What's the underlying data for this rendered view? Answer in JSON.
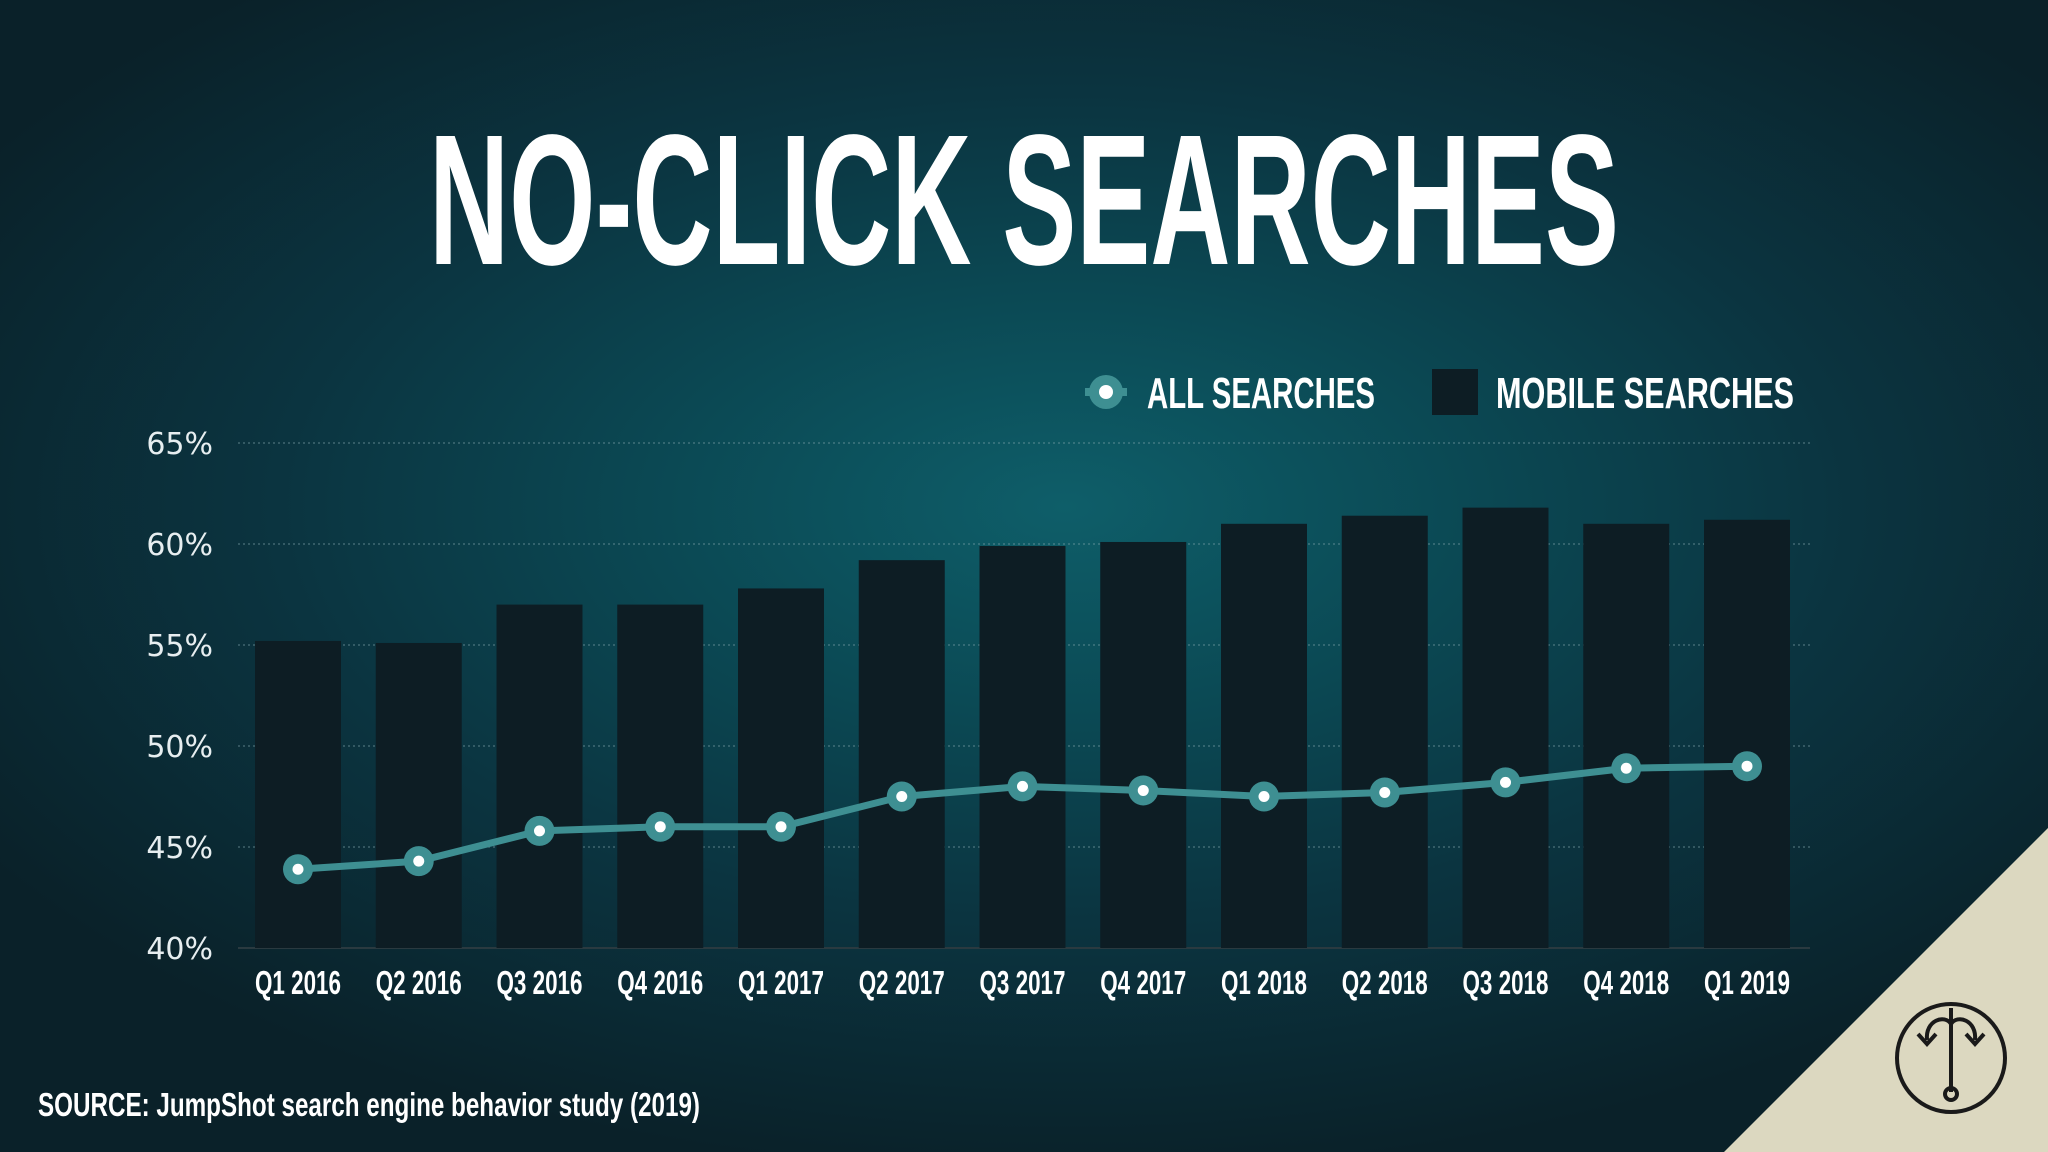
{
  "page": {
    "title": "NO-CLICK SEARCHES",
    "source": "SOURCE: JumpShot search engine behavior study (2019)",
    "logo_icon": "anchor-f-logo-icon"
  },
  "colors": {
    "background": "#0b3440",
    "bar": "#0d1d24",
    "line": "#3e8f92",
    "marker_center": "#ffffff",
    "grid": "#7fa3aa",
    "corner": "#dcd8c0",
    "logo": "#1a1a1a"
  },
  "chart_data": {
    "type": "bar",
    "title": "NO-CLICK SEARCHES",
    "categories": [
      "Q1 2016",
      "Q2 2016",
      "Q3 2016",
      "Q4 2016",
      "Q1 2017",
      "Q2 2017",
      "Q3 2017",
      "Q4 2017",
      "Q1 2018",
      "Q2 2018",
      "Q3 2018",
      "Q4 2018",
      "Q1 2019"
    ],
    "series": [
      {
        "name": "MOBILE SEARCHES",
        "type": "bar",
        "values": [
          55.2,
          55.1,
          57.0,
          57.0,
          57.8,
          59.2,
          59.9,
          60.1,
          61.0,
          61.4,
          61.8,
          61.0,
          61.2
        ]
      },
      {
        "name": "ALL SEARCHES",
        "type": "line",
        "values": [
          43.9,
          44.3,
          45.8,
          46.0,
          46.0,
          47.5,
          48.0,
          47.8,
          47.5,
          47.7,
          48.2,
          48.9,
          49.0
        ]
      }
    ],
    "yticks": [
      "65%",
      "60%",
      "55%",
      "50%",
      "45%",
      "40%"
    ],
    "ytick_values": [
      65,
      60,
      55,
      50,
      45,
      40
    ],
    "ylim": [
      40,
      65
    ],
    "xlabel": "",
    "ylabel": "",
    "grid": true,
    "legend_position": "top-right"
  }
}
